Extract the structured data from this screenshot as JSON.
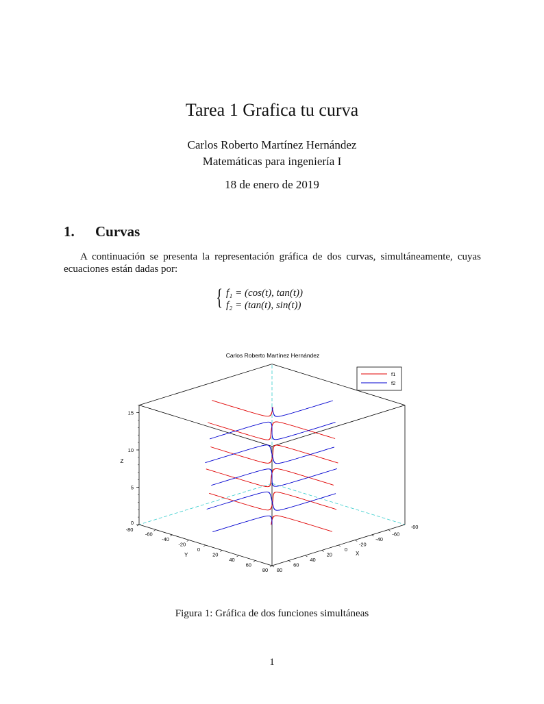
{
  "document": {
    "title": "Tarea 1 Grafica tu curva",
    "author": "Carlos Roberto Martínez Hernández",
    "course": "Matemáticas para ingeniería I",
    "date": "18 de enero de 2019",
    "section_number": "1.",
    "section_title": "Curvas",
    "paragraph": "A continuación se presenta la representación gráfica de dos curvas, simultáneamente, cuyas ecuaciones están dadas por:",
    "equations": [
      "f₁ = (cos(t), tan(t))",
      "f₂ = (tan(t), sin(t))"
    ],
    "caption": "Figura 1: Gráfica de dos funciones simultáneas",
    "page_number": "1"
  },
  "chart_data": {
    "type": "line3d",
    "title": "Carlos Roberto Martínez Hernández",
    "xlabel": "X",
    "ylabel": "Y",
    "zlabel": "Z",
    "xlim": [
      -80,
      80
    ],
    "ylim": [
      -80,
      80
    ],
    "zlim": [
      0,
      16
    ],
    "x_ticks": [
      "-60",
      "-40",
      "-20",
      "0",
      "20",
      "40",
      "60",
      "80"
    ],
    "y_ticks": [
      "-80",
      "-60",
      "-40",
      "-20",
      "0",
      "20",
      "40",
      "60",
      "80"
    ],
    "z_ticks": [
      "0",
      "5",
      "10",
      "15"
    ],
    "legend_position": "top-right",
    "series": [
      {
        "name": "f1",
        "x": "cos(t)",
        "y": "tan(t)",
        "z": "t",
        "color": "#e00000"
      },
      {
        "name": "f2",
        "x": "tan(t)",
        "y": "sin(t)",
        "z": "t",
        "color": "#0000d0"
      }
    ],
    "box_color": "#000000",
    "hidden_edge_color": "#33cccc"
  }
}
